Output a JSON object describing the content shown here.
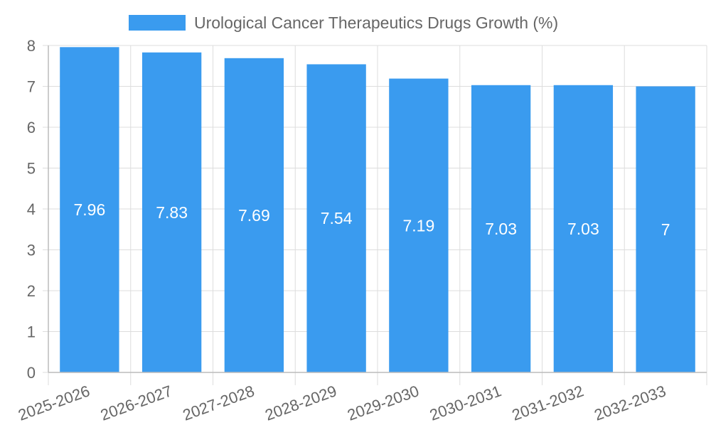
{
  "chart_data": {
    "type": "bar",
    "title": "",
    "xlabel": "",
    "ylabel": "",
    "categories": [
      "2025-2026",
      "2026-2027",
      "2027-2028",
      "2028-2029",
      "2029-2030",
      "2030-2031",
      "2031-2032",
      "2032-2033"
    ],
    "series": [
      {
        "name": "Urological Cancer Therapeutics Drugs Growth (%)",
        "values": [
          7.96,
          7.83,
          7.69,
          7.54,
          7.19,
          7.03,
          7.03,
          7
        ],
        "color": "#3a9bef"
      }
    ],
    "data_labels": [
      "7.96",
      "7.83",
      "7.69",
      "7.54",
      "7.19",
      "7.03",
      "7.03",
      "7"
    ],
    "ylim": [
      0,
      8
    ],
    "yticks": [
      "0",
      "1",
      "2",
      "3",
      "4",
      "5",
      "6",
      "7",
      "8"
    ],
    "grid": true,
    "legend_position": "top-center"
  }
}
